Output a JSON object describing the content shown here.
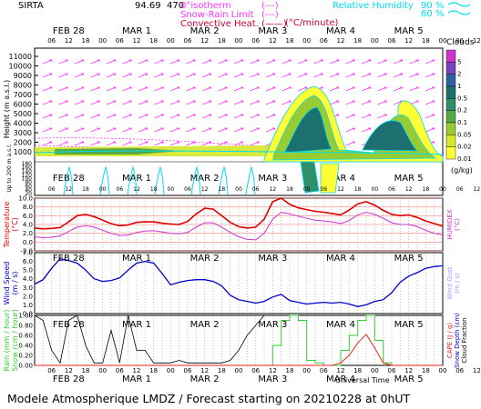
{
  "header": {
    "station": "SIRTA",
    "coord": "94.69",
    "coord_overlap": "470",
    "legend_left": [
      {
        "label": "0°isotherm",
        "color": "#ff33ff",
        "symbol": "(---)"
      },
      {
        "label": "Snow-Rain Limit",
        "color": "#ff33ff",
        "symbol": "(---)"
      },
      {
        "label": "Convective Heat.",
        "color": "#cc0033",
        "symbol": "(——)"
      }
    ],
    "unit_convective": "(°C/minute)",
    "legend_right": [
      {
        "label": "Relative Humidity",
        "value": "90 %",
        "color": "#00ddee"
      },
      {
        "value": "60 %",
        "color": "#00ddee"
      }
    ]
  },
  "days": [
    "FEB 28",
    "MAR  1",
    "MAR  2",
    "MAR  3",
    "MAR  4",
    "MAR  5"
  ],
  "hour_ticks": [
    "06",
    "12",
    "18",
    "00",
    "06",
    "12",
    "18",
    "00",
    "06",
    "12",
    "18",
    "00",
    "06",
    "12",
    "18",
    "00",
    "06",
    "12",
    "18",
    "00",
    "06",
    "12",
    "18",
    "00",
    "06",
    "12"
  ],
  "universal_time": "Universal Time",
  "footer": "Modele Atmospherique LMDZ / Forecast starting on 20210228 at 0hUT",
  "colors": {
    "temperature": "#dd0000",
    "humidex": "#cc33cc",
    "wind": "#0000cc",
    "gust": "#9999ff",
    "rain": "#33cc33",
    "snow": "#000000",
    "cape": "#ee2222",
    "rh90": "#00ddee"
  },
  "chart_data": [
    {
      "type": "heatmap",
      "name": "clouds",
      "ylabel": "Height  (m a.s.l.)",
      "ylabel_low": "Up to 200 m a.s.l.",
      "yticks_upper": [
        "11000",
        "10000",
        "9000",
        "8000",
        "7000",
        "6000",
        "5000",
        "4000",
        "3000",
        "2000",
        "1000"
      ],
      "yticks_lower": [
        "180",
        "160",
        "140",
        "120",
        "100",
        "80",
        "60",
        "40",
        "20"
      ],
      "colorbar": {
        "title": "Clouds",
        "unit": "(g/kg)",
        "levels": [
          "0.01",
          "0.02",
          "0.05",
          "0.1",
          "0.2",
          "0.5",
          "1",
          "2",
          "5"
        ],
        "colors": [
          "#ffff33",
          "#d4e829",
          "#99cc33",
          "#55aa44",
          "#2f8f6a",
          "#1c7070",
          "#2f5fa0",
          "#7744bb",
          "#cc33cc"
        ]
      }
    },
    {
      "type": "line",
      "name": "temperature",
      "ylabel": "Temperature\n(°C)",
      "ylabel_right": "HUMIDEX\n(°C)",
      "yticks": [
        "10.0",
        "8.0",
        "6.0",
        "4.0",
        "2.0",
        "0.0",
        "-2.0"
      ],
      "ylim": [
        -2,
        10
      ],
      "x": [
        0,
        3,
        6,
        9,
        12,
        15,
        18,
        21,
        24,
        27,
        30,
        33,
        36,
        39,
        42,
        45,
        48,
        51,
        54,
        57,
        60,
        63,
        66,
        69,
        72,
        75,
        78,
        81,
        84,
        87,
        90,
        93,
        96,
        99,
        102,
        105,
        108,
        111,
        114,
        117,
        120,
        123,
        126,
        129,
        132,
        135,
        138,
        141,
        144
      ],
      "series": [
        {
          "name": "Temperature",
          "values": [
            3.2,
            3.0,
            3.1,
            3.3,
            4.6,
            6.0,
            6.3,
            5.8,
            5.0,
            4.2,
            3.7,
            3.9,
            4.5,
            4.6,
            4.6,
            4.3,
            4.1,
            4.0,
            4.7,
            6.4,
            7.7,
            7.5,
            6.0,
            4.5,
            3.5,
            3.2,
            3.4,
            5.2,
            9.2,
            10.0,
            8.6,
            7.8,
            7.4,
            7.0,
            6.8,
            6.5,
            6.2,
            7.3,
            8.7,
            9.2,
            8.4,
            7.2,
            6.3,
            6.0,
            6.2,
            5.6,
            4.8,
            4.2,
            3.6
          ]
        },
        {
          "name": "Humidex",
          "values": [
            1.2,
            1.0,
            1.1,
            1.4,
            2.4,
            3.4,
            3.7,
            3.4,
            2.7,
            2.0,
            1.5,
            1.6,
            2.2,
            2.5,
            2.6,
            2.3,
            2.0,
            1.9,
            2.2,
            3.4,
            4.4,
            4.4,
            3.4,
            2.2,
            1.2,
            0.6,
            0.5,
            2.0,
            5.2,
            6.8,
            6.4,
            5.9,
            5.4,
            5.0,
            4.8,
            4.6,
            4.2,
            4.9,
            6.2,
            6.8,
            6.3,
            5.4,
            4.4,
            4.0,
            4.0,
            3.5,
            2.7,
            2.0,
            1.6
          ]
        }
      ]
    },
    {
      "type": "line",
      "name": "wind",
      "ylabel": "Wind Speed\n(m / s)",
      "ylabel_right": "Wind Gust\n(m / s)",
      "yticks": [
        "7.0",
        "6.0",
        "5.0",
        "4.0",
        "3.0",
        "2.0",
        "1.0",
        "0.0"
      ],
      "ylim": [
        0,
        7
      ],
      "x": [
        0,
        3,
        6,
        9,
        12,
        15,
        18,
        21,
        24,
        27,
        30,
        33,
        36,
        39,
        42,
        45,
        48,
        51,
        54,
        57,
        60,
        63,
        66,
        69,
        72,
        75,
        78,
        81,
        84,
        87,
        90,
        93,
        96,
        99,
        102,
        105,
        108,
        111,
        114,
        117,
        120,
        123,
        126,
        129,
        132,
        135,
        138,
        141,
        144
      ],
      "series": [
        {
          "name": "Wind Speed",
          "values": [
            3.4,
            3.9,
            5.2,
            6.3,
            6.1,
            5.8,
            5.0,
            4.0,
            3.7,
            3.8,
            4.1,
            5.0,
            5.8,
            6.0,
            5.8,
            4.6,
            3.3,
            3.6,
            3.8,
            3.9,
            3.9,
            3.7,
            3.2,
            2.1,
            1.6,
            1.4,
            1.2,
            1.4,
            1.9,
            2.2,
            1.5,
            1.3,
            1.1,
            1.2,
            1.3,
            1.2,
            1.3,
            1.1,
            0.8,
            1.0,
            1.4,
            1.6,
            2.4,
            3.6,
            4.3,
            4.7,
            5.2,
            5.4,
            5.5
          ]
        }
      ]
    },
    {
      "type": "line",
      "name": "precipitation",
      "ylabel": "Rain (mm / hour)\nSnow (cm / hour)",
      "ylabel_right": "CAPE (J / g)\nSnow Depth (cm)\nCloud Fraction",
      "yticks": [
        "1.00",
        "0.80",
        "0.60",
        "0.40",
        "0.20",
        "0.00"
      ],
      "ylim": [
        0,
        1
      ],
      "x": [
        0,
        3,
        6,
        9,
        12,
        15,
        18,
        21,
        24,
        27,
        30,
        33,
        36,
        39,
        42,
        45,
        48,
        51,
        54,
        57,
        60,
        63,
        66,
        69,
        72,
        75,
        78,
        81,
        84,
        87,
        90,
        93,
        96,
        99,
        102,
        105,
        108,
        111,
        114,
        117,
        120,
        123,
        126,
        129,
        132,
        135,
        138,
        141,
        144
      ],
      "series": [
        {
          "name": "Cloud Fraction",
          "values": [
            1.0,
            0.9,
            0.3,
            0.05,
            0.9,
            1.0,
            0.4,
            0.05,
            0.05,
            0.7,
            0.05,
            1.0,
            0.3,
            0.3,
            0.05,
            0.05,
            0.05,
            0.1,
            0.05,
            0.05,
            0.05,
            0.05,
            0.05,
            0.1,
            0.3,
            0.6,
            0.8,
            1.0,
            1.0,
            1.0,
            1.0,
            1.0,
            1.0,
            1.0,
            1.0,
            1.0,
            1.0,
            1.0,
            1.0,
            1.0,
            1.0,
            1.0,
            1.0,
            1.0,
            1.0,
            1.0,
            1.0,
            1.0,
            1.0
          ]
        },
        {
          "name": "Rain",
          "values": [
            0,
            0,
            0,
            0,
            0,
            0,
            0,
            0,
            0,
            0,
            0,
            0,
            0,
            0,
            0,
            0,
            0,
            0,
            0,
            0,
            0,
            0,
            0,
            0,
            0,
            0,
            0,
            0,
            0.4,
            0.9,
            1.0,
            0.9,
            0.1,
            0.05,
            0,
            0,
            0.3,
            0.6,
            0.9,
            1.0,
            0.5,
            0.05,
            0,
            0,
            0,
            0,
            0,
            0,
            0
          ]
        },
        {
          "name": "CAPE",
          "values": [
            0,
            0,
            0,
            0,
            0,
            0,
            0,
            0,
            0,
            0,
            0,
            0,
            0,
            0,
            0,
            0,
            0,
            0,
            0,
            0,
            0,
            0,
            0,
            0,
            0,
            0,
            0,
            0,
            0,
            0,
            0,
            0,
            0,
            0,
            0,
            0,
            0.05,
            0.2,
            0.45,
            0.62,
            0.35,
            0.05,
            0,
            0,
            0,
            0,
            0,
            0,
            0
          ]
        }
      ]
    }
  ]
}
